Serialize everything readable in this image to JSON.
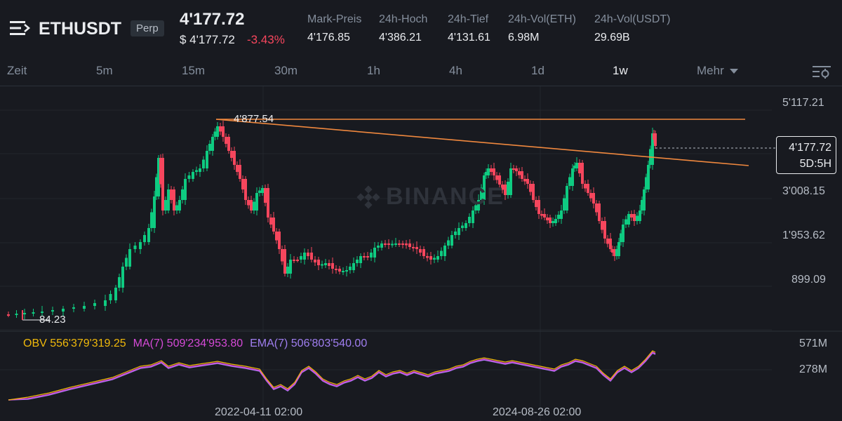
{
  "header": {
    "symbol": "ETHUSDT",
    "badge": "Perp",
    "last_price": "4'177.72",
    "usd_price": "$ 4'177.72",
    "change": "-3.43%",
    "stats": [
      {
        "label": "Mark-Preis",
        "value": "4'176.85"
      },
      {
        "label": "24h-Hoch",
        "value": "4'386.21"
      },
      {
        "label": "24h-Tief",
        "value": "4'131.61"
      },
      {
        "label": "24h-Vol(ETH)",
        "value": "6.98M"
      },
      {
        "label": "24h-Vol(USDT)",
        "value": "29.69B"
      }
    ],
    "icons": {
      "menu": "menu-icon"
    }
  },
  "tabs": {
    "time_label": "Zeit",
    "items": [
      "5m",
      "15m",
      "30m",
      "1h",
      "4h",
      "1d",
      "1w"
    ],
    "active": "1w",
    "more": "Mehr",
    "settings_icon": "chart-settings-icon"
  },
  "chart": {
    "price_axis": [
      "5'117.21",
      "3'008.15",
      "1'953.62",
      "899.09"
    ],
    "current_price": "4'177.72",
    "countdown": "5D:5H",
    "high_annotation": "4'877.54",
    "low_annotation": "84.23",
    "watermark": "BINANCE",
    "indicator_axis": [
      "571M",
      "278M"
    ],
    "dates": [
      "2022-04-11 02:00",
      "2024-08-26 02:00"
    ],
    "colors": {
      "up": "#0ecb81",
      "down": "#f6465d",
      "trendline": "#f0883e",
      "obv": "#f0b90b",
      "ma": "#d64ad8",
      "ema": "#a07ef0"
    }
  },
  "indicators": {
    "obv": "OBV 556'379'319.25",
    "ma": "MA(7) 509'234'953.80",
    "ema": "EMA(7) 506'803'540.00"
  }
}
